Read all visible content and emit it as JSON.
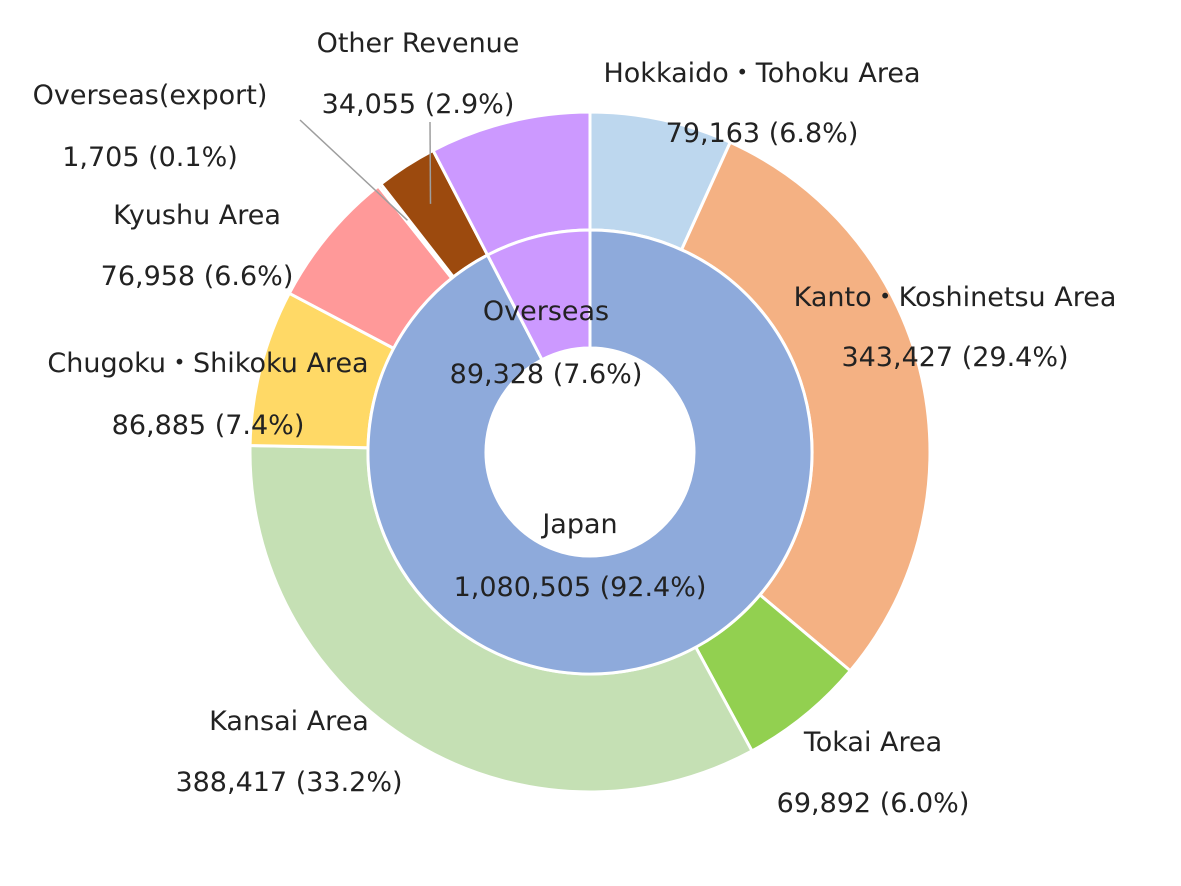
{
  "chart_data": {
    "type": "pie",
    "subtype": "nested-donut",
    "legend": "none",
    "unit": "",
    "inner_ring": [
      {
        "name": "Japan",
        "value": 1080505,
        "percent": "92.4%",
        "value_label": "1,080,505 (92.4%)",
        "color": "#8eaadb"
      },
      {
        "name": "Overseas",
        "value": 89328,
        "percent": "7.6%",
        "value_label": "89,328 (7.6%)",
        "color": "#cc99ff"
      }
    ],
    "outer_ring": [
      {
        "name": "Hokkaido・Tohoku Area",
        "value": 79163,
        "percent": "6.8%",
        "value_label": "79,163 (6.8%)",
        "color": "#bdd7ee"
      },
      {
        "name": "Kanto・Koshinetsu Area",
        "value": 343427,
        "percent": "29.4%",
        "value_label": "343,427 (29.4%)",
        "color": "#f4b183"
      },
      {
        "name": "Tokai Area",
        "value": 69892,
        "percent": "6.0%",
        "value_label": "69,892 (6.0%)",
        "color": "#92d050"
      },
      {
        "name": "Kansai Area",
        "value": 388417,
        "percent": "33.2%",
        "value_label": "388,417 (33.2%)",
        "color": "#c5e0b4"
      },
      {
        "name": "Chugoku・Shikoku Area",
        "value": 86885,
        "percent": "7.4%",
        "value_label": "86,885 (7.4%)",
        "color": "#ffd966"
      },
      {
        "name": "Kyushu Area",
        "value": 76958,
        "percent": "6.6%",
        "value_label": "76,958 (6.6%)",
        "color": "#ff9999"
      },
      {
        "name": "Overseas(export)",
        "value": 1705,
        "percent": "0.1%",
        "value_label": "1,705 (0.1%)",
        "color": "#c00000"
      },
      {
        "name": "Other Revenue",
        "value": 34055,
        "percent": "2.9%",
        "value_label": "34,055 (2.9%)",
        "color": "#9c4a0e"
      },
      {
        "name": "Overseas",
        "value": 89328,
        "percent": "7.6%",
        "value_label": "",
        "color": "#cc99ff"
      }
    ]
  }
}
